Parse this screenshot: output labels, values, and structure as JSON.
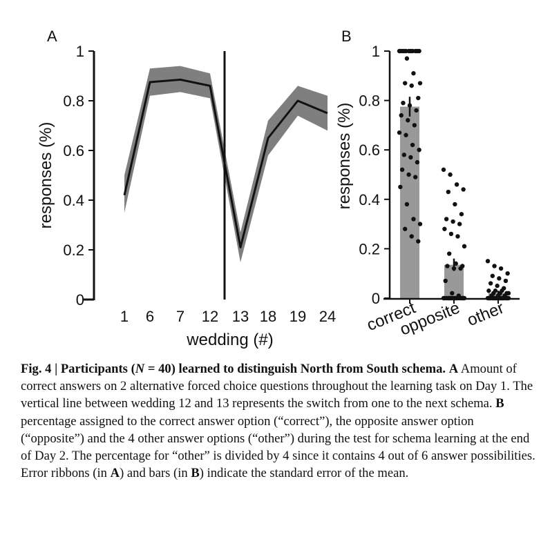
{
  "chart_data": [
    {
      "panel": "A",
      "type": "line",
      "xlabel": "wedding (#)",
      "ylabel": "responses (%)",
      "categories": [
        "1",
        "6",
        "7",
        "12",
        "13",
        "18",
        "19",
        "24"
      ],
      "ylim": [
        0,
        1
      ],
      "yticks": [
        "0",
        "0.2",
        "0.4",
        "0.6",
        "0.8",
        "1"
      ],
      "vertical_line_between": [
        "12",
        "13"
      ],
      "series": [
        {
          "values": [
            0.42,
            0.875,
            0.885,
            0.86,
            0.21,
            0.65,
            0.8,
            0.75
          ],
          "error_lower": [
            0.35,
            0.82,
            0.835,
            0.81,
            0.15,
            0.58,
            0.74,
            0.68
          ],
          "error_upper": [
            0.5,
            0.93,
            0.94,
            0.91,
            0.27,
            0.72,
            0.86,
            0.82
          ]
        }
      ],
      "colors": {
        "line": "#111111",
        "ribbon": "#7f7f7f"
      }
    },
    {
      "panel": "B",
      "type": "bar",
      "ylabel": "responses (%)",
      "categories": [
        "correct",
        "opposite",
        "other"
      ],
      "values": [
        0.775,
        0.135,
        0.02
      ],
      "sem": [
        0.04,
        0.025,
        0.01
      ],
      "ylim": [
        0,
        1
      ],
      "yticks": [
        "0",
        "0.2",
        "0.4",
        "0.6",
        "0.8",
        "1"
      ],
      "points": [
        [
          1,
          1,
          1,
          1,
          1,
          1,
          1,
          1,
          1,
          1,
          1,
          0.97,
          0.91,
          0.87,
          0.87,
          0.86,
          0.81,
          0.79,
          0.78,
          0.76,
          0.74,
          0.72,
          0.7,
          0.67,
          0.66,
          0.62,
          0.6,
          0.58,
          0.57,
          0.55,
          0.52,
          0.5,
          0.49,
          0.45,
          0.38,
          0.32,
          0.3,
          0.28,
          0.25,
          0.23
        ],
        [
          0.52,
          0.5,
          0.46,
          0.44,
          0.43,
          0.38,
          0.34,
          0.32,
          0.31,
          0.3,
          0.28,
          0.26,
          0.25,
          0.21,
          0.18,
          0.14,
          0.13,
          0.13,
          0.12,
          0.12,
          0.07,
          0.02,
          0.01,
          0,
          0,
          0,
          0,
          0,
          0,
          0,
          0,
          0,
          0,
          0,
          0,
          0,
          0,
          0,
          0,
          0
        ],
        [
          0.15,
          0.13,
          0.12,
          0.1,
          0.09,
          0.08,
          0.07,
          0.06,
          0.05,
          0.04,
          0.03,
          0.03,
          0.03,
          0.02,
          0.02,
          0.02,
          0.02,
          0.01,
          0.01,
          0.01,
          0,
          0,
          0,
          0,
          0,
          0,
          0,
          0,
          0,
          0,
          0,
          0,
          0,
          0,
          0,
          0,
          0,
          0,
          0,
          0
        ]
      ],
      "colors": {
        "bar": "#999999",
        "point": "#111111"
      }
    }
  ],
  "labels": {
    "panel_a": "A",
    "panel_b": "B"
  },
  "caption": {
    "fig": "Fig. 4",
    "sep": " | ",
    "title_a": "Participants (",
    "n_symbol": "N",
    "title_b": " = 40) learned to distinguish North from South schema.",
    "a_label": "A",
    "a_text": " Amount of correct answers on 2 alternative forced choice questions throughout the learning task on Day 1. The vertical line between wedding 12 and 13 represents the switch from one to the next schema. ",
    "b_label": "B",
    "b_text": " percentage assigned to the correct answer option (“correct”), the opposite answer option (“opposite”) and the 4 other answer options (“other”) during the test for schema learning at the end of Day 2. The percentage for “other” is divided by 4 since it contains 4 out of 6 answer possibilities. Error ribbons (in ",
    "ref_a": "A",
    "mid_text": ") and bars (in ",
    "ref_b": "B",
    "end_text": ") indicate the standard error of the mean."
  }
}
